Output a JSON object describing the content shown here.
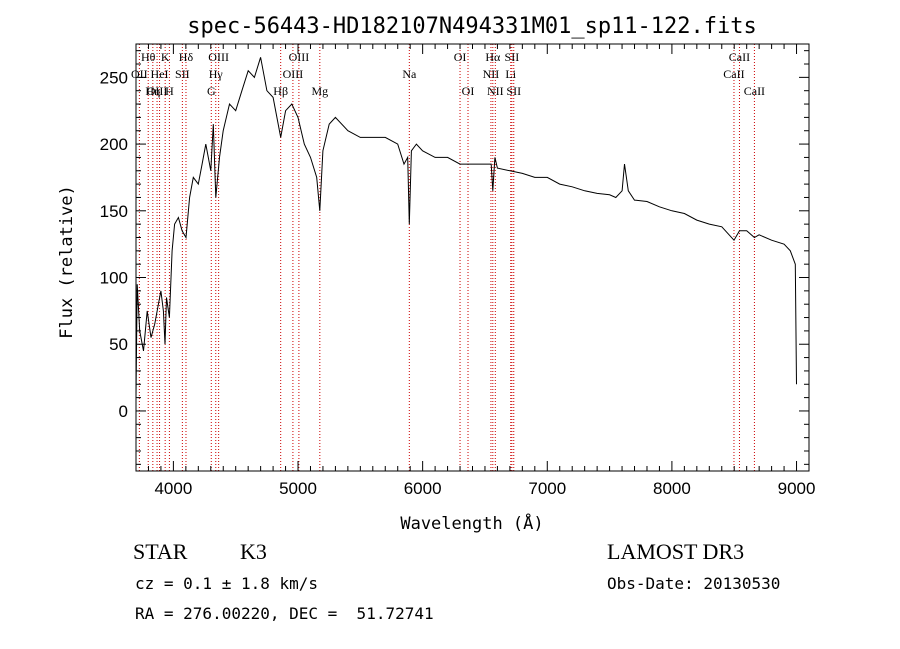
{
  "chart_data": {
    "type": "line",
    "title": "spec-56443-HD182107N494331M01_sp11-122.fits",
    "xlabel": "Wavelength (Å)",
    "ylabel": "Flux (relative)",
    "xlim": [
      3700,
      9100
    ],
    "ylim": [
      -45,
      275
    ],
    "x_ticks": [
      4000,
      5000,
      6000,
      7000,
      8000,
      9000
    ],
    "y_ticks": [
      0,
      50,
      100,
      150,
      200,
      250
    ],
    "grid": false,
    "series": [
      {
        "x": [
          3700,
          3710,
          3730,
          3760,
          3790,
          3820,
          3850,
          3880,
          3900,
          3920,
          3933,
          3945,
          3968,
          3990,
          4010,
          4040,
          4070,
          4101,
          4130,
          4160,
          4200,
          4230,
          4260,
          4300,
          4320,
          4340,
          4370,
          4400,
          4450,
          4500,
          4550,
          4600,
          4650,
          4700,
          4750,
          4800,
          4861,
          4900,
          4950,
          5000,
          5050,
          5100,
          5150,
          5175,
          5200,
          5250,
          5300,
          5400,
          5500,
          5600,
          5700,
          5800,
          5850,
          5880,
          5893,
          5910,
          5950,
          6000,
          6100,
          6200,
          6300,
          6400,
          6500,
          6550,
          6563,
          6580,
          6600,
          6700,
          6800,
          6900,
          7000,
          7100,
          7200,
          7300,
          7400,
          7500,
          7550,
          7600,
          7620,
          7650,
          7700,
          7800,
          7900,
          8000,
          8100,
          8200,
          8300,
          8400,
          8498,
          8542,
          8600,
          8662,
          8700,
          8800,
          8900,
          8950,
          8990,
          9000
        ],
        "values": [
          10,
          95,
          60,
          45,
          75,
          55,
          65,
          80,
          90,
          75,
          50,
          85,
          70,
          120,
          140,
          145,
          135,
          130,
          160,
          175,
          170,
          185,
          200,
          180,
          215,
          160,
          190,
          210,
          230,
          225,
          240,
          255,
          250,
          265,
          240,
          235,
          205,
          225,
          230,
          220,
          200,
          190,
          175,
          150,
          195,
          215,
          220,
          210,
          205,
          205,
          205,
          200,
          185,
          190,
          140,
          195,
          200,
          195,
          190,
          190,
          185,
          185,
          185,
          185,
          165,
          190,
          182,
          180,
          178,
          175,
          175,
          170,
          168,
          165,
          163,
          162,
          160,
          165,
          185,
          165,
          158,
          157,
          153,
          150,
          148,
          143,
          140,
          138,
          128,
          135,
          135,
          130,
          132,
          128,
          125,
          120,
          110,
          20
        ]
      }
    ],
    "lines": [
      {
        "label": "Hθ",
        "x": 3798,
        "row": 0
      },
      {
        "label": "OII",
        "x": 3727,
        "row": 1
      },
      {
        "label": "Hη",
        "x": 3835,
        "row": 2
      },
      {
        "label": "OIII",
        "x": 3869,
        "row": 2
      },
      {
        "label": "HeI",
        "x": 3889,
        "row": 1
      },
      {
        "label": "K",
        "x": 3934,
        "row": 0
      },
      {
        "label": "H",
        "x": 3968,
        "row": 2
      },
      {
        "label": "SII",
        "x": 4072,
        "row": 1
      },
      {
        "label": "Hδ",
        "x": 4101,
        "row": 0
      },
      {
        "label": "G",
        "x": 4304,
        "row": 2
      },
      {
        "label": "Hγ",
        "x": 4340,
        "row": 1
      },
      {
        "label": "OIII",
        "x": 4363,
        "row": 0
      },
      {
        "label": "Hβ",
        "x": 4861,
        "row": 2
      },
      {
        "label": "OIII",
        "x": 4959,
        "row": 1
      },
      {
        "label": "OIII",
        "x": 5007,
        "row": 0
      },
      {
        "label": "Mg",
        "x": 5175,
        "row": 2
      },
      {
        "label": "Na",
        "x": 5893,
        "row": 1
      },
      {
        "label": "OI",
        "x": 6300,
        "row": 0
      },
      {
        "label": "OI",
        "x": 6364,
        "row": 2
      },
      {
        "label": "NII",
        "x": 6548,
        "row": 1
      },
      {
        "label": "Hα",
        "x": 6563,
        "row": 0
      },
      {
        "label": "NII",
        "x": 6583,
        "row": 2
      },
      {
        "label": "Li",
        "x": 6707,
        "row": 1
      },
      {
        "label": "SII",
        "x": 6716,
        "row": 0
      },
      {
        "label": "SII",
        "x": 6731,
        "row": 2
      },
      {
        "label": "CaII",
        "x": 8498,
        "row": 1
      },
      {
        "label": "CaII",
        "x": 8542,
        "row": 0
      },
      {
        "label": "CaII",
        "x": 8662,
        "row": 2
      }
    ]
  },
  "info": {
    "class": "STAR",
    "subclass": "K3",
    "survey": "LAMOST DR3",
    "cz": "cz = 0.1 ± 1.8 km/s",
    "obs_date": "Obs-Date: 20130530",
    "coords": "RA = 276.00220, DEC =  51.72741"
  },
  "colors": {
    "spectrum": "#000000",
    "line_marker": "#cc0000"
  }
}
